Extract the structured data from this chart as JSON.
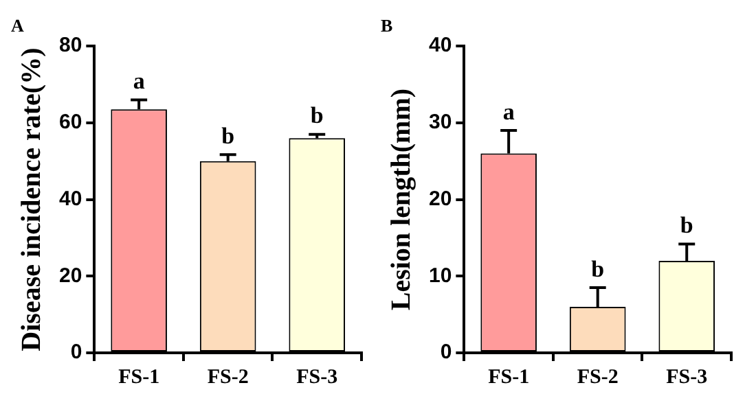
{
  "chart_data": [
    {
      "type": "bar",
      "title": "A",
      "ylabel": "Disease incidence rate(%)",
      "categories": [
        "FS-1",
        "FS-2",
        "FS-3"
      ],
      "values": [
        63.5,
        50,
        56
      ],
      "errors": [
        [
          63.5,
          66
        ],
        [
          50,
          51.7
        ],
        [
          56,
          57
        ]
      ],
      "colors": [
        "#ff9b9b",
        "#fddcbb",
        "#ffffdc"
      ],
      "ylim": [
        0,
        80
      ],
      "yticks": [
        0,
        20,
        40,
        60,
        80
      ],
      "grid": false,
      "legend": false,
      "annotations": [
        {
          "text": "a",
          "x": "FS-1",
          "y": 66
        },
        {
          "text": "b",
          "x": "FS-2",
          "y": 51.7
        },
        {
          "text": "b",
          "x": "FS-3",
          "y": 57
        }
      ]
    },
    {
      "type": "bar",
      "title": "B",
      "ylabel": "Lesion length(mm)",
      "categories": [
        "FS-1",
        "FS-2",
        "FS-3"
      ],
      "values": [
        26,
        6,
        12
      ],
      "errors": [
        [
          26,
          29
        ],
        [
          6,
          8.5
        ],
        [
          12,
          14.2
        ]
      ],
      "colors": [
        "#ff9b9b",
        "#fddcbb",
        "#ffffdc"
      ],
      "ylim": [
        0,
        40
      ],
      "yticks": [
        0,
        10,
        20,
        30,
        40
      ],
      "grid": false,
      "legend": false,
      "annotations": [
        {
          "text": "a",
          "x": "FS-1",
          "y": 29
        },
        {
          "text": "b",
          "x": "FS-2",
          "y": 8.5
        },
        {
          "text": "b",
          "x": "FS-3",
          "y": 14.2
        }
      ]
    }
  ]
}
